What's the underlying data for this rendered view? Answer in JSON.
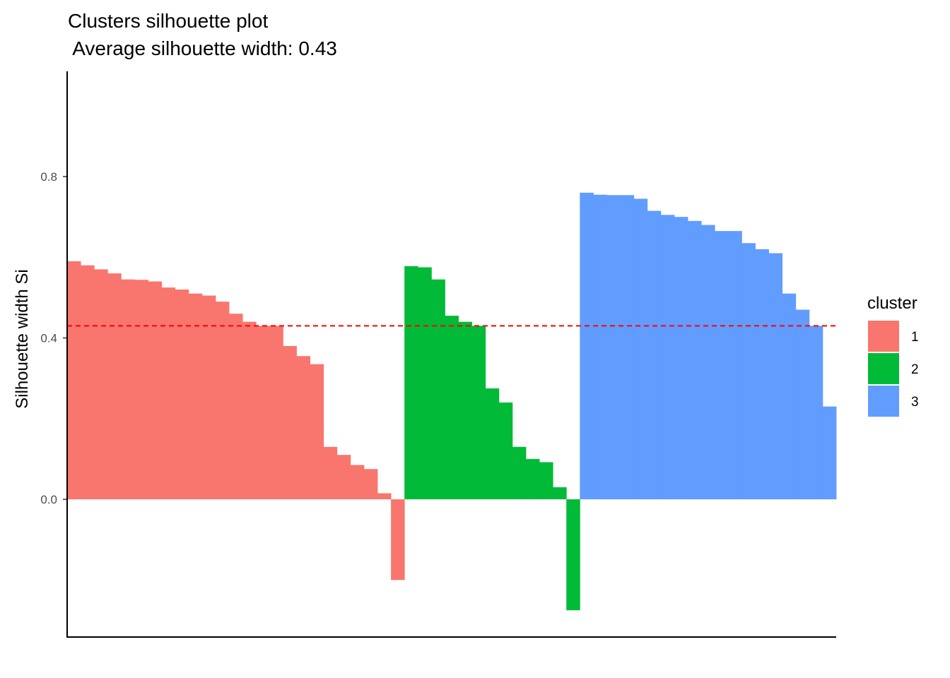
{
  "chart_data": {
    "type": "bar",
    "title": "Clusters silhouette plot",
    "subtitle": " Average silhouette width: 0.43",
    "xlabel": "",
    "ylabel": "Silhouette width Si",
    "ylim": [
      -0.34,
      1.06
    ],
    "y_ticks": [
      0.0,
      0.4,
      0.8
    ],
    "y_tick_labels": [
      "0.0",
      "0.4",
      "0.8"
    ],
    "average_silhouette_width": 0.43,
    "grid": false,
    "legend": {
      "title": "cluster",
      "placement": "right"
    },
    "series": [
      {
        "name": "1",
        "color": "#F8766D",
        "values": [
          0.59,
          0.58,
          0.57,
          0.56,
          0.545,
          0.544,
          0.54,
          0.525,
          0.52,
          0.51,
          0.505,
          0.49,
          0.46,
          0.44,
          0.43,
          0.43,
          0.38,
          0.355,
          0.335,
          0.13,
          0.11,
          0.085,
          0.075,
          0.015,
          -0.2
        ]
      },
      {
        "name": "2",
        "color": "#00BA38",
        "values": [
          0.578,
          0.575,
          0.545,
          0.455,
          0.44,
          0.43,
          0.275,
          0.24,
          0.13,
          0.1,
          0.092,
          0.03,
          -0.275
        ]
      },
      {
        "name": "3",
        "color": "#619CFF",
        "values": [
          0.76,
          0.755,
          0.754,
          0.754,
          0.745,
          0.715,
          0.705,
          0.7,
          0.69,
          0.68,
          0.665,
          0.665,
          0.635,
          0.62,
          0.61,
          0.51,
          0.47,
          0.43,
          0.23
        ]
      }
    ]
  }
}
